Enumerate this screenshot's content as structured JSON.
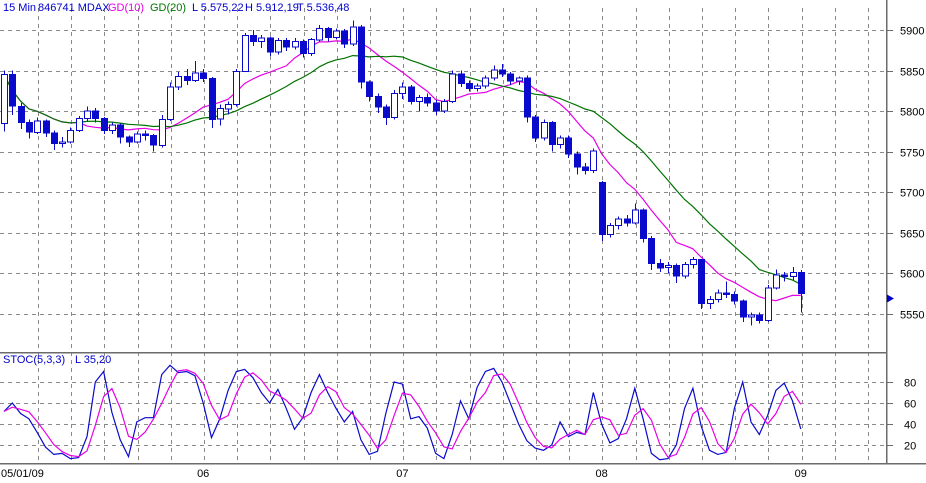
{
  "header": {
    "period": "15 Min",
    "symbol": "846741 MDAX",
    "ma1_label": "GD(10)",
    "ma2_label": "GD(20)",
    "last_label": "L 5.575,22",
    "high_label": "H 5.912,19",
    "low_label": "T 5.536,48"
  },
  "stoch_header": {
    "indicator_label": "STOC(5,3,3)",
    "value_label": "L 35,20"
  },
  "colors": {
    "candle": "#0a0acc",
    "candle_fill_up": "#ffffff",
    "ma10": "#e800e8",
    "ma20": "#007300",
    "stoch_k": "#0a0acc",
    "stoch_d": "#e800e8",
    "grid": "#8a8a8a",
    "axis": "#6b6b6b",
    "tick_text": "#000000",
    "marker": "#0000cc"
  },
  "chart_data": {
    "type": "candlestick",
    "title": "846741 MDAX 15 Min",
    "legend_position": "top-left",
    "grid": true,
    "x_axis": {
      "candles_per_day": 24,
      "labels": [
        {
          "text": "05/01/09",
          "candle": 0,
          "align": "left"
        },
        {
          "text": "06",
          "candle": 24
        },
        {
          "text": "07",
          "candle": 48
        },
        {
          "text": "08",
          "candle": 72
        },
        {
          "text": "09",
          "candle": 96
        }
      ]
    },
    "panes": [
      {
        "name": "price",
        "ylim": [
          5525,
          5920
        ],
        "yticks": [
          5550,
          5600,
          5650,
          5700,
          5750,
          5800,
          5850,
          5900
        ],
        "last_price": 5575.22,
        "high": 5912.19,
        "low": 5536.48,
        "overlays": [
          {
            "name": "GD(10)",
            "type": "sma",
            "window": 10,
            "color_key": "ma10"
          },
          {
            "name": "GD(20)",
            "type": "sma",
            "window": 20,
            "color_key": "ma20"
          }
        ],
        "candles": [
          [
            5785,
            5850,
            5775,
            5845
          ],
          [
            5845,
            5850,
            5795,
            5806
          ],
          [
            5806,
            5810,
            5778,
            5786
          ],
          [
            5786,
            5790,
            5766,
            5774
          ],
          [
            5774,
            5792,
            5772,
            5788
          ],
          [
            5788,
            5790,
            5768,
            5773
          ],
          [
            5773,
            5776,
            5752,
            5760
          ],
          [
            5760,
            5768,
            5755,
            5762
          ],
          [
            5762,
            5780,
            5760,
            5776
          ],
          [
            5776,
            5794,
            5774,
            5791
          ],
          [
            5791,
            5806,
            5788,
            5800
          ],
          [
            5800,
            5804,
            5786,
            5791
          ],
          [
            5791,
            5793,
            5772,
            5776
          ],
          [
            5776,
            5786,
            5772,
            5783
          ],
          [
            5783,
            5785,
            5760,
            5768
          ],
          [
            5768,
            5770,
            5756,
            5762
          ],
          [
            5762,
            5775,
            5760,
            5772
          ],
          [
            5772,
            5776,
            5764,
            5770
          ],
          [
            5770,
            5772,
            5750,
            5758
          ],
          [
            5758,
            5795,
            5755,
            5790
          ],
          [
            5790,
            5835,
            5788,
            5830
          ],
          [
            5830,
            5848,
            5826,
            5843
          ],
          [
            5843,
            5852,
            5832,
            5838
          ],
          [
            5838,
            5862,
            5836,
            5847
          ],
          [
            5847,
            5852,
            5836,
            5840
          ],
          [
            5840,
            5842,
            5779,
            5790
          ],
          [
            5790,
            5808,
            5782,
            5803
          ],
          [
            5803,
            5812,
            5796,
            5808
          ],
          [
            5808,
            5852,
            5806,
            5849
          ],
          [
            5849,
            5896,
            5848,
            5893
          ],
          [
            5893,
            5900,
            5880,
            5886
          ],
          [
            5886,
            5894,
            5878,
            5890
          ],
          [
            5890,
            5892,
            5868,
            5873
          ],
          [
            5873,
            5890,
            5870,
            5887
          ],
          [
            5887,
            5890,
            5874,
            5879
          ],
          [
            5879,
            5890,
            5876,
            5886
          ],
          [
            5886,
            5888,
            5866,
            5871
          ],
          [
            5871,
            5890,
            5868,
            5888
          ],
          [
            5888,
            5906,
            5886,
            5902
          ],
          [
            5902,
            5904,
            5886,
            5891
          ],
          [
            5891,
            5902,
            5888,
            5899
          ],
          [
            5899,
            5901,
            5878,
            5883
          ],
          [
            5883,
            5912,
            5880,
            5904
          ],
          [
            5904,
            5906,
            5828,
            5836
          ],
          [
            5836,
            5838,
            5812,
            5818
          ],
          [
            5818,
            5822,
            5798,
            5805
          ],
          [
            5805,
            5808,
            5783,
            5792
          ],
          [
            5792,
            5826,
            5790,
            5822
          ],
          [
            5822,
            5835,
            5815,
            5830
          ],
          [
            5830,
            5832,
            5808,
            5812
          ],
          [
            5812,
            5820,
            5800,
            5817
          ],
          [
            5817,
            5822,
            5806,
            5810
          ],
          [
            5810,
            5814,
            5795,
            5800
          ],
          [
            5800,
            5815,
            5798,
            5812
          ],
          [
            5812,
            5850,
            5810,
            5846
          ],
          [
            5846,
            5850,
            5830,
            5834
          ],
          [
            5834,
            5838,
            5824,
            5828
          ],
          [
            5828,
            5834,
            5824,
            5831
          ],
          [
            5831,
            5844,
            5828,
            5841
          ],
          [
            5841,
            5856,
            5838,
            5851
          ],
          [
            5851,
            5858,
            5842,
            5846
          ],
          [
            5846,
            5848,
            5832,
            5837
          ],
          [
            5837,
            5843,
            5832,
            5841
          ],
          [
            5841,
            5844,
            5786,
            5793
          ],
          [
            5793,
            5795,
            5762,
            5767
          ],
          [
            5767,
            5790,
            5764,
            5786
          ],
          [
            5786,
            5788,
            5750,
            5759
          ],
          [
            5759,
            5770,
            5754,
            5767
          ],
          [
            5767,
            5770,
            5742,
            5747
          ],
          [
            5747,
            5750,
            5722,
            5731
          ],
          [
            5731,
            5736,
            5722,
            5727
          ],
          [
            5727,
            5754,
            5724,
            5751
          ],
          [
            5712,
            5714,
            5640,
            5648
          ],
          [
            5648,
            5662,
            5644,
            5659
          ],
          [
            5659,
            5670,
            5654,
            5667
          ],
          [
            5667,
            5672,
            5658,
            5662
          ],
          [
            5662,
            5686,
            5660,
            5678
          ],
          [
            5678,
            5680,
            5638,
            5643
          ],
          [
            5643,
            5646,
            5604,
            5612
          ],
          [
            5612,
            5618,
            5602,
            5607
          ],
          [
            5607,
            5614,
            5600,
            5610
          ],
          [
            5610,
            5612,
            5588,
            5597
          ],
          [
            5597,
            5614,
            5594,
            5611
          ],
          [
            5611,
            5620,
            5606,
            5617
          ],
          [
            5617,
            5618,
            5556,
            5563
          ],
          [
            5563,
            5572,
            5556,
            5568
          ],
          [
            5568,
            5580,
            5564,
            5576
          ],
          [
            5576,
            5590,
            5570,
            5574
          ],
          [
            5574,
            5578,
            5562,
            5566
          ],
          [
            5566,
            5568,
            5540,
            5546
          ],
          [
            5546,
            5552,
            5536,
            5549
          ],
          [
            5549,
            5552,
            5538,
            5542
          ],
          [
            5542,
            5586,
            5540,
            5582
          ],
          [
            5582,
            5605,
            5580,
            5598
          ],
          [
            5598,
            5602,
            5590,
            5596
          ],
          [
            5596,
            5608,
            5592,
            5601
          ],
          [
            5601,
            5604,
            5552,
            5575
          ]
        ]
      },
      {
        "name": "stochastic",
        "indicator": "STOC(5,3,3)",
        "ylim": [
          0,
          100
        ],
        "yticks": [
          20,
          40,
          60,
          80
        ],
        "last_value": 35.2,
        "d_is_sma_of_k": 3,
        "k": [
          52,
          60,
          50,
          45,
          32,
          18,
          11,
          12,
          7,
          8,
          28,
          80,
          90,
          51,
          25,
          9,
          42,
          46,
          46,
          87,
          96,
          89,
          90,
          86,
          60,
          27,
          45,
          72,
          90,
          92,
          84,
          70,
          60,
          73,
          55,
          35,
          46,
          70,
          87,
          70,
          55,
          42,
          52,
          25,
          11,
          14,
          50,
          80,
          78,
          45,
          47,
          36,
          12,
          7,
          30,
          62,
          45,
          75,
          90,
          93,
          80,
          60,
          40,
          24,
          17,
          15,
          20,
          42,
          28,
          32,
          30,
          70,
          40,
          22,
          26,
          45,
          74,
          45,
          12,
          6,
          7,
          20,
          55,
          74,
          38,
          15,
          11,
          13,
          55,
          80,
          42,
          30,
          48,
          72,
          79,
          62,
          35.2
        ]
      }
    ]
  }
}
